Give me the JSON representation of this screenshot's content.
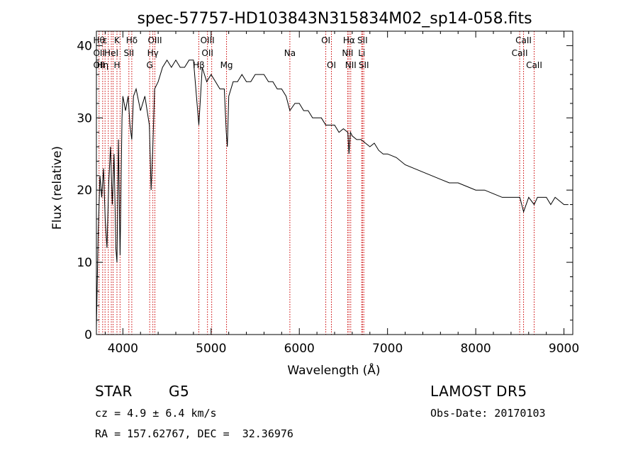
{
  "chart_data": {
    "type": "line",
    "title": "spec-57757-HD103843N315834M02_sp14-058.fits",
    "xlabel": "Wavelength (Å)",
    "ylabel": "Flux (relative)",
    "xlim": [
      3700,
      9100
    ],
    "ylim": [
      0,
      42
    ],
    "xticks": [
      4000,
      5000,
      6000,
      7000,
      8000,
      9000
    ],
    "yticks": [
      0,
      10,
      20,
      30,
      40
    ],
    "grid": false,
    "line_color": "#000000",
    "marker_color": "#cc0000",
    "series": [
      {
        "x": [
          3700,
          3720,
          3740,
          3760,
          3780,
          3800,
          3820,
          3840,
          3860,
          3880,
          3900,
          3920,
          3933,
          3950,
          3968,
          3990,
          4000,
          4030,
          4060,
          4080,
          4101,
          4120,
          4150,
          4200,
          4250,
          4300,
          4320,
          4340,
          4360,
          4400,
          4450,
          4500,
          4550,
          4600,
          4650,
          4700,
          4750,
          4800,
          4861,
          4900,
          4950,
          5000,
          5050,
          5100,
          5150,
          5172,
          5184,
          5200,
          5250,
          5300,
          5350,
          5400,
          5450,
          5500,
          5550,
          5600,
          5650,
          5700,
          5750,
          5800,
          5850,
          5893,
          5950,
          6000,
          6050,
          6100,
          6150,
          6200,
          6250,
          6300,
          6350,
          6400,
          6450,
          6500,
          6550,
          6563,
          6580,
          6600,
          6650,
          6700,
          6750,
          6800,
          6850,
          6900,
          6950,
          7000,
          7100,
          7200,
          7300,
          7400,
          7500,
          7600,
          7700,
          7800,
          7900,
          8000,
          8100,
          8200,
          8300,
          8400,
          8500,
          8542,
          8600,
          8662,
          8700,
          8750,
          8800,
          8850,
          8900,
          8950,
          9000,
          9050
        ],
        "values": [
          1,
          14,
          22,
          19,
          23,
          16,
          12,
          21,
          26,
          18,
          25,
          12,
          10,
          27,
          11,
          30,
          33,
          31,
          33,
          29,
          27,
          33,
          34,
          31,
          33,
          29,
          20,
          26,
          34,
          35,
          37,
          38,
          37,
          38,
          37,
          37,
          38,
          38,
          29,
          37,
          35,
          36,
          35,
          34,
          34,
          28,
          26,
          33,
          35,
          35,
          36,
          35,
          35,
          36,
          36,
          36,
          35,
          35,
          34,
          34,
          33,
          31,
          32,
          32,
          31,
          31,
          30,
          30,
          30,
          29,
          29,
          29,
          28,
          28.5,
          28,
          25,
          28,
          27.5,
          27,
          27,
          26.5,
          26,
          26.5,
          25.5,
          25,
          25,
          24.5,
          23.5,
          23,
          22.5,
          22,
          21.5,
          21,
          21,
          20.5,
          20,
          20,
          19.5,
          19,
          19,
          19,
          17,
          19,
          18,
          19,
          19,
          19,
          18,
          19,
          18.5,
          18,
          18
        ]
      }
    ],
    "line_markers": [
      {
        "x": 3730,
        "labels": [
          "Hθ",
          "OII",
          "OII"
        ]
      },
      {
        "x": 3771,
        "labels": [
          "",
          "",
          "Hη"
        ]
      },
      {
        "x": 3798,
        "labels": [
          "ε",
          "",
          ""
        ]
      },
      {
        "x": 3835,
        "labels": [
          "",
          "",
          ""
        ]
      },
      {
        "x": 3869,
        "labels": [
          "",
          "HeI",
          ""
        ]
      },
      {
        "x": 3889,
        "labels": [
          "",
          "",
          ""
        ]
      },
      {
        "x": 3933,
        "labels": [
          "K",
          "",
          "H"
        ]
      },
      {
        "x": 3968,
        "labels": [
          "",
          "",
          ""
        ]
      },
      {
        "x": 4068,
        "labels": [
          "",
          "SII",
          ""
        ]
      },
      {
        "x": 4101,
        "labels": [
          "Hδ",
          "",
          ""
        ]
      },
      {
        "x": 4304,
        "labels": [
          "",
          "",
          "G"
        ]
      },
      {
        "x": 4340,
        "labels": [
          "",
          "Hγ",
          ""
        ]
      },
      {
        "x": 4363,
        "labels": [
          "OIII",
          "",
          ""
        ]
      },
      {
        "x": 4861,
        "labels": [
          "",
          "",
          "Hβ"
        ]
      },
      {
        "x": 4959,
        "labels": [
          "OIII",
          "OII",
          ""
        ]
      },
      {
        "x": 5007,
        "labels": [
          "",
          "",
          ""
        ]
      },
      {
        "x": 5175,
        "labels": [
          "",
          "",
          "Mg"
        ]
      },
      {
        "x": 5893,
        "labels": [
          "",
          "Na",
          ""
        ]
      },
      {
        "x": 6300,
        "labels": [
          "OI",
          "",
          ""
        ]
      },
      {
        "x": 6364,
        "labels": [
          "",
          "",
          "OI"
        ]
      },
      {
        "x": 6548,
        "labels": [
          "",
          "NII",
          ""
        ]
      },
      {
        "x": 6563,
        "labels": [
          "Hα",
          "",
          ""
        ]
      },
      {
        "x": 6583,
        "labels": [
          "",
          "",
          "NII"
        ]
      },
      {
        "x": 6707,
        "labels": [
          "",
          "Li",
          ""
        ]
      },
      {
        "x": 6716,
        "labels": [
          "SII",
          "",
          ""
        ]
      },
      {
        "x": 6731,
        "labels": [
          "",
          "",
          "SII"
        ]
      },
      {
        "x": 8498,
        "labels": [
          "",
          "CaII",
          ""
        ]
      },
      {
        "x": 8542,
        "labels": [
          "CaII",
          "",
          ""
        ]
      },
      {
        "x": 8662,
        "labels": [
          "",
          "",
          "CaII"
        ]
      }
    ]
  },
  "info": {
    "class_label": "STAR",
    "subclass_label": "G5",
    "redshift_text": "cz = 4.9 ± 6.4 km/s",
    "coords_text": "RA = 157.62767, DEC =  32.36976",
    "survey_label": "LAMOST DR5",
    "obs_date_text": "Obs-Date: 20170103"
  }
}
